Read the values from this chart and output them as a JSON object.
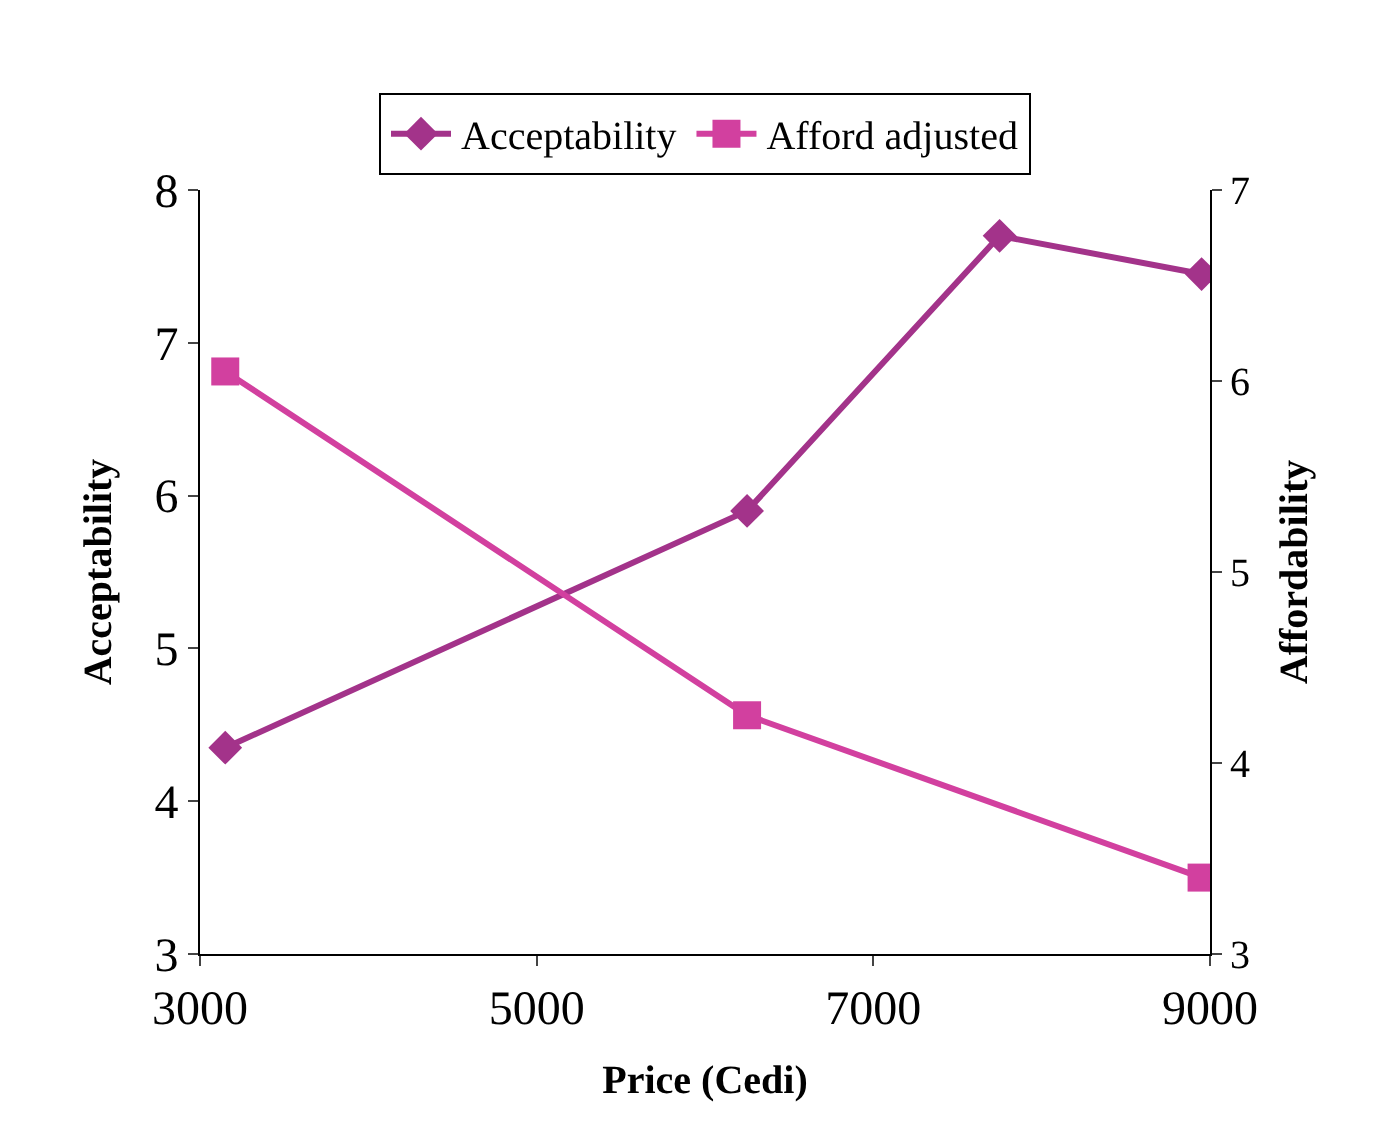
{
  "chart_data": {
    "type": "line",
    "xlabel": "Price (Cedi)",
    "ylabel": "Acceptability",
    "y2label": "Affordability",
    "xlim": [
      3000,
      9000
    ],
    "xticks": [
      3000,
      5000,
      7000,
      9000
    ],
    "ylim": [
      3,
      8
    ],
    "yticks": [
      3,
      4,
      5,
      6,
      7,
      8
    ],
    "y2lim": [
      3,
      7
    ],
    "y2ticks": [
      3,
      4,
      5,
      6,
      7
    ],
    "legend": "top",
    "line_style": "solid",
    "series": [
      {
        "name": "Acceptability",
        "color": "#a3338a",
        "marker": "diamond",
        "x": [
          3150,
          6250,
          7750,
          8950
        ],
        "values": [
          4.35,
          5.9,
          7.7,
          7.45
        ]
      },
      {
        "name": "Afford adjusted",
        "color": "#d2409f",
        "marker": "square",
        "axis": "y2",
        "x": [
          3150,
          6250,
          8950
        ],
        "values": [
          6.05,
          4.25,
          3.4
        ]
      }
    ]
  }
}
